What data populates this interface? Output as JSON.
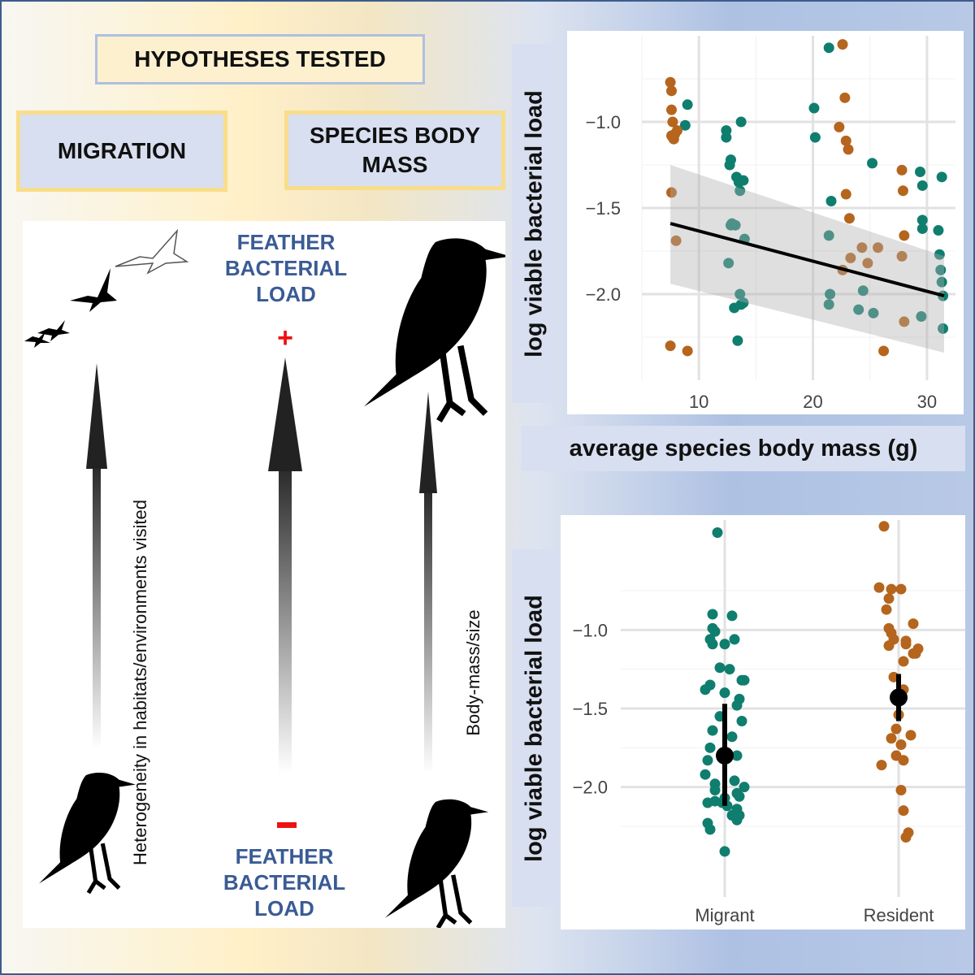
{
  "title": "HYPOTHESES TESTED",
  "hypotheses": {
    "migration": "MIGRATION",
    "body_mass": "SPECIES BODY MASS"
  },
  "diagram": {
    "feather_top": "FEATHER BACTERIAL LOAD",
    "feather_bottom": "FEATHER BACTERIAL LOAD",
    "plus_sign": "+",
    "minus_sign": "-",
    "axis_left": "Heterogeneity in habitats/environments visited",
    "axis_right": "Body-mass/size"
  },
  "colors": {
    "migrant": "#0f7e6e",
    "resident": "#b5651d",
    "fit": "#000000"
  },
  "chart_data": [
    {
      "type": "scatter",
      "ylabel": "log viable bacterial load",
      "xlabel": "average species body mass (g)",
      "xlim": [
        5,
        32.5
      ],
      "ylim": [
        -2.5,
        -0.5
      ],
      "xticks": [
        10,
        20,
        30
      ],
      "yticks": [
        -1.0,
        -1.5,
        -2.0
      ],
      "xtick_labels": [
        "10",
        "20",
        "30"
      ],
      "ytick_labels": [
        "−1.0",
        "−1.5",
        "−2.0"
      ],
      "grid": true,
      "fit_line": {
        "x": [
          7.5,
          31.5
        ],
        "y": [
          -1.59,
          -2.01
        ]
      },
      "confidence_band": {
        "x": [
          7.5,
          31.5
        ],
        "upper": [
          -1.25,
          -1.78
        ],
        "lower": [
          -1.94,
          -2.34
        ]
      },
      "series": [
        {
          "name": "Migrant",
          "x": [
            8.8,
            9.0,
            12.4,
            12.4,
            12.7,
            12.8,
            13.3,
            13.5,
            13.6,
            13.7,
            13.9,
            14.0,
            12.8,
            12.9,
            12.6,
            13.2,
            13.7,
            13.6,
            13.1,
            13.4,
            13.9,
            21.4,
            20.1,
            20.2,
            21.6,
            21.4,
            21.5,
            21.4,
            25.2,
            24.4,
            25.3,
            24.0,
            29.4,
            29.6,
            31.3,
            29.6,
            29.6,
            31.0,
            31.1,
            31.2,
            31.3,
            31.4,
            31.4,
            29.5
          ],
          "y": [
            -1.02,
            -0.9,
            -1.05,
            -1.09,
            -1.25,
            -1.22,
            -1.32,
            -1.35,
            -1.4,
            -1.0,
            -1.34,
            -1.68,
            -1.6,
            -1.59,
            -1.82,
            -1.6,
            -2.06,
            -2.0,
            -2.08,
            -2.27,
            -2.05,
            -0.57,
            -0.92,
            -1.09,
            -1.46,
            -1.66,
            -2.0,
            -2.06,
            -1.24,
            -1.98,
            -2.11,
            -2.09,
            -1.29,
            -1.37,
            -1.32,
            -1.57,
            -1.62,
            -1.63,
            -1.77,
            -1.86,
            -1.93,
            -2.01,
            -2.2,
            -2.13
          ]
        },
        {
          "name": "Resident",
          "x": [
            7.5,
            7.6,
            7.6,
            7.7,
            7.9,
            7.6,
            7.7,
            7.8,
            8.1,
            7.6,
            8.0,
            7.5,
            9.0,
            22.6,
            22.8,
            22.9,
            23.1,
            22.3,
            22.9,
            23.2,
            23.3,
            24.3,
            24.8,
            22.6,
            25.7,
            27.8,
            27.9,
            28.0,
            27.8,
            28.0,
            26.2
          ],
          "y": [
            -0.77,
            -0.82,
            -0.93,
            -1.0,
            -1.07,
            -1.08,
            -1.09,
            -1.1,
            -1.05,
            -1.41,
            -1.69,
            -2.3,
            -2.33,
            -0.55,
            -0.86,
            -1.11,
            -1.16,
            -1.03,
            -1.42,
            -1.56,
            -1.79,
            -1.73,
            -1.82,
            -1.86,
            -1.73,
            -1.28,
            -1.4,
            -1.66,
            -1.78,
            -2.16,
            -2.33
          ]
        }
      ]
    },
    {
      "type": "scatter",
      "ylabel": "log viable bacterial load",
      "categories": [
        "Migrant",
        "Resident"
      ],
      "ylim": [
        -2.7,
        -0.3
      ],
      "yticks": [
        -1.0,
        -1.5,
        -2.0
      ],
      "ytick_labels": [
        "−1.0",
        "−1.5",
        "−2.0"
      ],
      "grid": true,
      "summary": [
        {
          "category": "Migrant",
          "mean": -1.8,
          "lower": -2.12,
          "upper": -1.47
        },
        {
          "category": "Resident",
          "mean": -1.43,
          "lower": -1.58,
          "upper": -1.28
        }
      ],
      "series": [
        {
          "name": "Migrant",
          "x": [
            -0.03,
            -0.05,
            0.03,
            -0.05,
            -0.04,
            -0.06,
            0.04,
            -0.05,
            0.0,
            -0.02,
            0.02,
            0.07,
            -0.06,
            -0.08,
            0.08,
            0.0,
            0.06,
            0.05,
            -0.02,
            0.07,
            -0.05,
            0.03,
            -0.06,
            0.05,
            -0.07,
            -0.08,
            0.04,
            0.08,
            -0.04,
            0.05,
            0.0,
            -0.01,
            0.01,
            -0.04,
            0.05,
            0.06,
            -0.07,
            0.05,
            -0.06,
            0.03,
            -0.07,
            0.06,
            0.0,
            -0.04
          ],
          "y": [
            -0.38,
            -0.9,
            -0.91,
            -0.99,
            -1.01,
            -1.06,
            -1.06,
            -1.09,
            -1.09,
            -1.24,
            -1.25,
            -1.32,
            -1.35,
            -1.38,
            -1.32,
            -1.4,
            -1.44,
            -1.48,
            -1.55,
            -1.58,
            -1.64,
            -1.68,
            -1.75,
            -1.8,
            -1.83,
            -1.92,
            -1.96,
            -2.0,
            -2.02,
            -2.04,
            -2.07,
            -2.1,
            -2.12,
            -2.09,
            -2.14,
            -2.18,
            -2.23,
            -2.21,
            -2.27,
            -2.18,
            -2.1,
            -2.06,
            -2.41,
            -1.98
          ]
        },
        {
          "name": "Resident",
          "x": [
            -0.06,
            -0.08,
            -0.03,
            0.01,
            -0.04,
            -0.05,
            0.06,
            -0.04,
            -0.03,
            -0.02,
            0.03,
            0.03,
            -0.04,
            0.08,
            0.06,
            0.07,
            0.02,
            -0.02,
            0.02,
            0.0,
            -0.01,
            0.05,
            -0.03,
            0.01,
            -0.01,
            0.02,
            -0.07,
            0.01,
            0.02,
            0.04,
            0.03
          ],
          "y": [
            -0.34,
            -0.73,
            -0.74,
            -0.74,
            -0.8,
            -0.87,
            -0.96,
            -0.99,
            -1.02,
            -1.06,
            -1.07,
            -1.09,
            -1.1,
            -1.12,
            -1.15,
            -1.15,
            -1.2,
            -1.3,
            -1.38,
            -1.54,
            -1.63,
            -1.67,
            -1.69,
            -1.73,
            -1.8,
            -1.83,
            -1.86,
            -2.02,
            -2.15,
            -2.29,
            -2.32
          ]
        }
      ]
    }
  ]
}
